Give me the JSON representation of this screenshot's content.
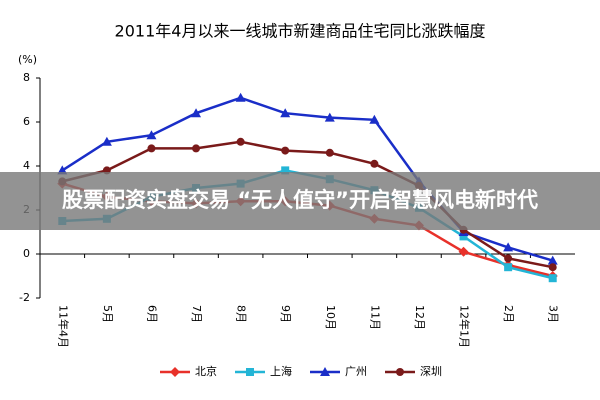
{
  "chart_data": {
    "type": "line",
    "title": "2011年4月以来一线城市新建商品住宅同比涨跌幅度",
    "y_unit": "(%)",
    "categories": [
      "11年4月",
      "5月",
      "6月",
      "7月",
      "8月",
      "9月",
      "10月",
      "11月",
      "12月",
      "12年1月",
      "2月",
      "3月"
    ],
    "series": [
      {
        "name": "北京",
        "color": "#e8312a",
        "marker": "diamond",
        "values": [
          3.2,
          2.6,
          2.4,
          2.3,
          2.4,
          2.4,
          2.2,
          1.6,
          1.3,
          0.1,
          -0.5,
          -1.0
        ]
      },
      {
        "name": "上海",
        "color": "#23b5d6",
        "marker": "square",
        "values": [
          1.5,
          1.6,
          2.6,
          3.0,
          3.2,
          3.8,
          3.4,
          2.9,
          2.1,
          0.8,
          -0.6,
          -1.1
        ]
      },
      {
        "name": "广州",
        "color": "#1a2ec8",
        "marker": "triangle",
        "values": [
          3.8,
          5.1,
          5.4,
          6.4,
          7.1,
          6.4,
          6.2,
          6.1,
          3.3,
          1.0,
          0.3,
          -0.3
        ]
      },
      {
        "name": "深圳",
        "color": "#7a1a1a",
        "marker": "circle",
        "values": [
          3.3,
          3.8,
          4.8,
          4.8,
          5.1,
          4.7,
          4.6,
          4.1,
          3.1,
          1.1,
          -0.2,
          -0.6
        ]
      }
    ],
    "ylim": [
      -2,
      8
    ],
    "yticks": [
      -2,
      0,
      2,
      4,
      6,
      8
    ],
    "grid": false,
    "legend": "bottom"
  },
  "banner": {
    "text": "股票配资实盘交易 “无人值守”开启智慧风电新时代"
  }
}
